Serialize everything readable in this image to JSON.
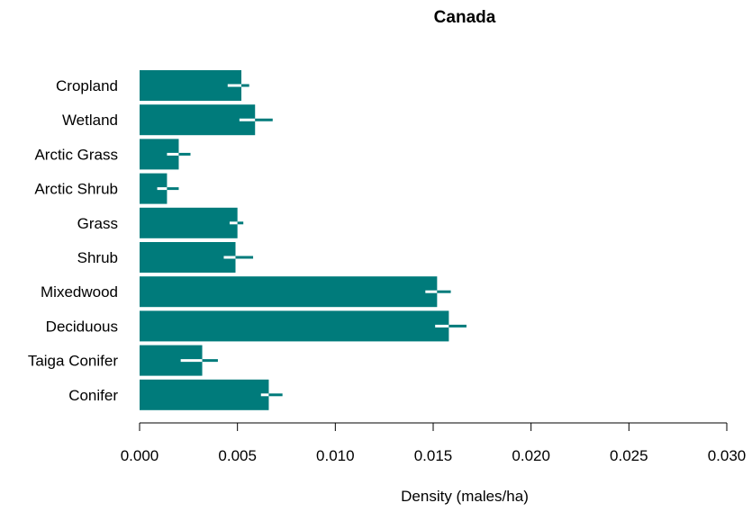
{
  "chart_data": {
    "type": "bar",
    "orientation": "horizontal",
    "title": "Canada",
    "xlabel": "Density (males/ha)",
    "ylabel": "",
    "xlim": [
      0,
      0.03
    ],
    "xticks": [
      "0.000",
      "0.005",
      "0.010",
      "0.015",
      "0.020",
      "0.025",
      "0.030"
    ],
    "xtick_values": [
      0,
      0.005,
      0.01,
      0.015,
      0.02,
      0.025,
      0.03
    ],
    "categories": [
      "Cropland",
      "Wetland",
      "Arctic Grass",
      "Arctic Shrub",
      "Grass",
      "Shrub",
      "Mixedwood",
      "Deciduous",
      "Taiga Conifer",
      "Conifer"
    ],
    "values": [
      0.0052,
      0.0059,
      0.002,
      0.0014,
      0.005,
      0.0049,
      0.0152,
      0.0158,
      0.0032,
      0.0066
    ],
    "error_low": [
      0.0045,
      0.0051,
      0.0014,
      0.0009,
      0.0046,
      0.0043,
      0.0146,
      0.0151,
      0.0021,
      0.0062
    ],
    "error_high": [
      0.0056,
      0.0068,
      0.0026,
      0.002,
      0.0053,
      0.0058,
      0.0159,
      0.0167,
      0.004,
      0.0073
    ],
    "grid": false,
    "colors": {
      "bar": "#007b7b",
      "error": "#007b7b",
      "axis": "#000000"
    }
  }
}
